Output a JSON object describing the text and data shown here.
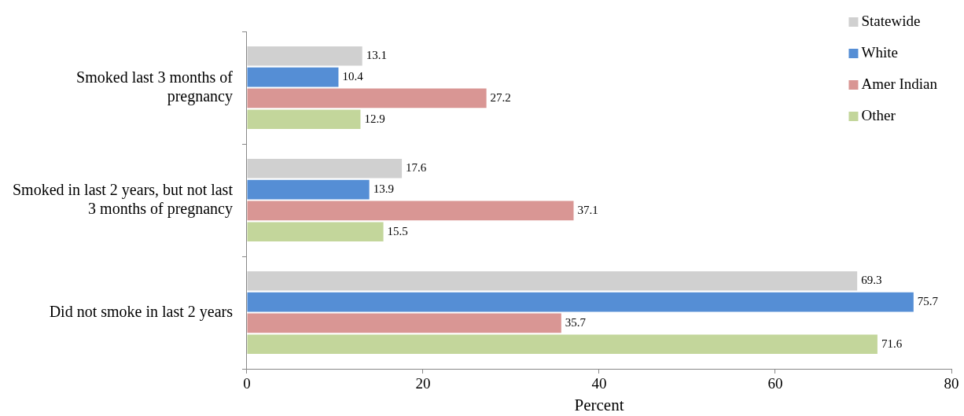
{
  "chart_data": {
    "type": "bar",
    "orientation": "horizontal",
    "categories": [
      "Smoked last 3 months of pregnancy",
      "Smoked in last 2 years, but not last 3 months of pregnancy",
      "Did not smoke in last 2 years"
    ],
    "series": [
      {
        "name": "Statewide",
        "color": "#d0d0d0",
        "values": [
          13.1,
          17.6,
          69.3
        ]
      },
      {
        "name": "White",
        "color": "#558ed5",
        "values": [
          10.4,
          13.9,
          75.7
        ]
      },
      {
        "name": "Amer Indian",
        "color": "#d99694",
        "values": [
          27.2,
          37.1,
          35.7
        ]
      },
      {
        "name": "Other",
        "color": "#c3d69b",
        "values": [
          12.9,
          15.5,
          71.6
        ]
      }
    ],
    "xlabel": "Percent",
    "xlim": [
      0,
      80
    ],
    "xticks": [
      0,
      20,
      40,
      60,
      80
    ],
    "grid": false,
    "legend": "top right",
    "data_labels": true
  }
}
